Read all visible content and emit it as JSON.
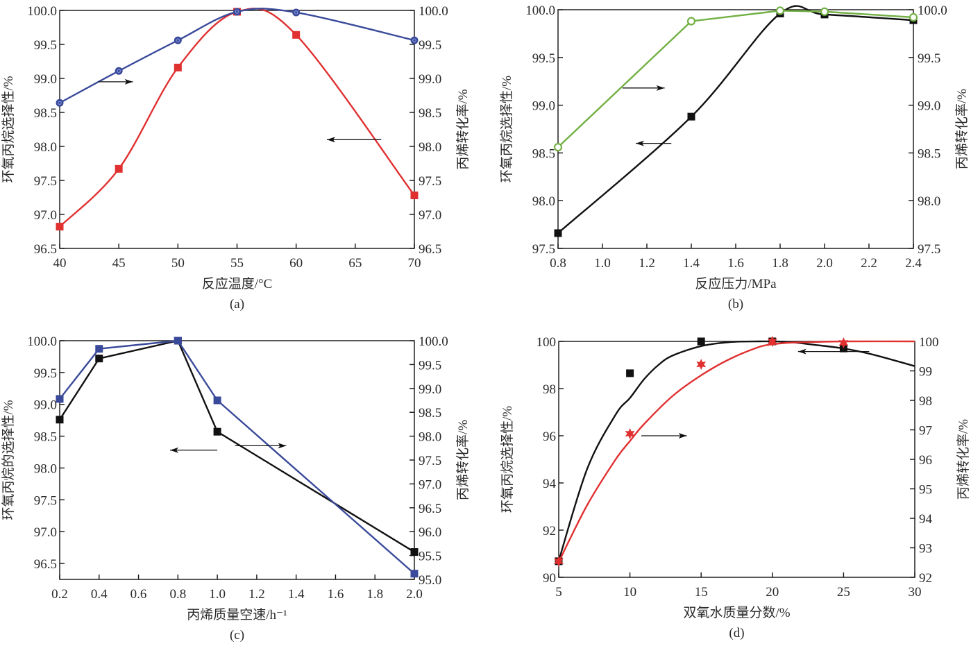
{
  "chart_data": [
    {
      "id": "a",
      "type": "line",
      "panel_label": "(a)",
      "xlabel": "反应温度/°C",
      "ylabel_left": "环氧丙烷选择性/%",
      "ylabel_right": "丙烯转化率/%",
      "xlim": [
        40,
        70
      ],
      "xticks": [
        40,
        45,
        50,
        55,
        60,
        65,
        70
      ],
      "xtick_labels": [
        "40",
        "45",
        "50",
        "55",
        "60",
        "65",
        "70"
      ],
      "ylim_left": [
        96.5,
        100.0
      ],
      "yticks_left": [
        "96.5",
        "97.0",
        "97.5",
        "98.0",
        "98.5",
        "99.0",
        "99.5",
        "100.0"
      ],
      "ylim_right": [
        96.5,
        100.0
      ],
      "yticks_right": [
        "96.5",
        "97.0",
        "97.5",
        "98.0",
        "98.5",
        "99.0",
        "99.5",
        "100.0"
      ],
      "grid": false,
      "series": [
        {
          "name": "环氧丙烷选择性",
          "axis": "left",
          "color": "#e03030",
          "marker": "square",
          "curve": "smooth",
          "x": [
            40,
            45,
            50,
            55,
            60,
            70
          ],
          "values": [
            96.82,
            97.67,
            99.16,
            99.98,
            99.64,
            97.28
          ]
        },
        {
          "name": "丙烯转化率",
          "axis": "right",
          "color": "#3a4a9a",
          "marker": "circle",
          "curve": "smooth",
          "x": [
            40,
            45,
            50,
            55,
            60,
            70
          ],
          "values": [
            98.64,
            99.11,
            99.56,
            99.98,
            99.97,
            99.56
          ]
        }
      ],
      "annotations": [
        {
          "type": "arrow",
          "direction": "right",
          "x_from": 43.3,
          "x_to": 46.2,
          "y": 98.95,
          "axis": "left",
          "meaning": "right axis"
        },
        {
          "type": "arrow",
          "direction": "left",
          "x_from": 67.2,
          "x_to": 62.6,
          "y": 98.1,
          "axis": "left",
          "meaning": "left axis"
        }
      ]
    },
    {
      "id": "b",
      "type": "line",
      "panel_label": "(b)",
      "xlabel": "反应压力/MPa",
      "ylabel_left": "环氧丙烷选择性/%",
      "ylabel_right": "丙烯转化率/%",
      "xlim": [
        0.8,
        2.4
      ],
      "xticks": [
        0.8,
        1.0,
        1.2,
        1.4,
        1.6,
        1.8,
        2.0,
        2.2,
        2.4
      ],
      "xtick_labels": [
        "0.8",
        "1.0",
        "1.2",
        "1.4",
        "1.6",
        "1.8",
        "2.0",
        "2.2",
        "2.4"
      ],
      "ylim_left": [
        97.5,
        100.0
      ],
      "yticks_left": [
        "97.5",
        "98.0",
        "98.5",
        "99.0",
        "99.5",
        "100.0"
      ],
      "ylim_right": [
        97.5,
        100.0
      ],
      "yticks_right": [
        "97.5",
        "98.0",
        "98.5",
        "99.0",
        "99.5",
        "100.0"
      ],
      "grid": false,
      "series": [
        {
          "name": "环氧丙烷选择性",
          "axis": "left",
          "color": "#111111",
          "marker": "square",
          "curve": "smooth",
          "x": [
            0.8,
            1.4,
            1.8,
            2.0,
            2.4
          ],
          "values": [
            97.66,
            98.88,
            99.96,
            99.95,
            99.89
          ]
        },
        {
          "name": "丙烯转化率",
          "axis": "right",
          "color": "#72b043",
          "marker": "open-circle",
          "curve": "linear",
          "x": [
            0.8,
            1.4,
            1.8,
            2.0,
            2.4
          ],
          "values": [
            98.56,
            99.88,
            99.99,
            99.98,
            99.92
          ]
        }
      ],
      "annotations": [
        {
          "type": "arrow",
          "direction": "right",
          "x_from": 1.09,
          "x_to": 1.28,
          "y": 99.18,
          "axis": "left",
          "meaning": "right axis"
        },
        {
          "type": "arrow",
          "direction": "left",
          "x_from": 1.31,
          "x_to": 1.15,
          "y": 98.6,
          "axis": "left",
          "meaning": "left axis"
        }
      ]
    },
    {
      "id": "c",
      "type": "line",
      "panel_label": "(c)",
      "xlabel": "丙烯质量空速/h⁻¹",
      "ylabel_left": "环氧丙烷的选择性/%",
      "ylabel_right": "丙烯转化率/%",
      "xlim": [
        0.2,
        2.0
      ],
      "xticks": [
        0.2,
        0.4,
        0.6,
        0.8,
        1.0,
        1.2,
        1.4,
        1.6,
        1.8,
        2.0
      ],
      "xtick_labels": [
        "0.2",
        "0.4",
        "0.6",
        "0.8",
        "1.0",
        "1.2",
        "1.4",
        "1.6",
        "1.8",
        "2.0"
      ],
      "ylim_left": [
        96.25,
        100.0
      ],
      "yticks_left": [
        "96.5",
        "97.0",
        "97.5",
        "98.0",
        "98.5",
        "99.0",
        "99.5",
        "100.0"
      ],
      "ylim_right": [
        95.0,
        100.0
      ],
      "yticks_right": [
        "95.0",
        "95.5",
        "96.0",
        "96.5",
        "97.0",
        "97.5",
        "98.0",
        "98.5",
        "99.0",
        "99.5",
        "100.0"
      ],
      "grid": false,
      "series": [
        {
          "name": "环氧丙烷的选择性",
          "axis": "left",
          "color": "#111111",
          "marker": "square",
          "curve": "linear",
          "x": [
            0.2,
            0.4,
            0.8,
            1.0,
            2.0
          ],
          "values": [
            98.76,
            99.72,
            100.0,
            98.57,
            96.68
          ]
        },
        {
          "name": "丙烯转化率",
          "axis": "right",
          "color": "#3a4a9a",
          "marker": "square",
          "curve": "linear",
          "x": [
            0.2,
            0.4,
            0.8,
            1.0,
            2.0
          ],
          "values": [
            98.78,
            99.83,
            100.0,
            98.75,
            95.12
          ]
        }
      ],
      "annotations": [
        {
          "type": "arrow",
          "direction": "left",
          "x_from": 1.0,
          "x_to": 0.76,
          "y": 98.28,
          "axis": "left",
          "meaning": "left axis"
        },
        {
          "type": "arrow",
          "direction": "right",
          "x_from": 1.09,
          "x_to": 1.35,
          "y": 98.35,
          "axis": "left",
          "meaning": "right axis"
        }
      ]
    },
    {
      "id": "d",
      "type": "line",
      "panel_label": "(d)",
      "xlabel": "双氧水质量分数/%",
      "ylabel_left": "环氧丙烷选择性/%",
      "ylabel_right": "丙烯转化率/%",
      "xlim": [
        5,
        30
      ],
      "xticks": [
        5,
        10,
        15,
        20,
        25,
        30
      ],
      "xtick_labels": [
        "5",
        "10",
        "15",
        "20",
        "25",
        "30"
      ],
      "ylim_left": [
        90,
        100
      ],
      "yticks_left": [
        "90",
        "92",
        "94",
        "96",
        "98",
        "100"
      ],
      "ylim_right": [
        92,
        100
      ],
      "yticks_right": [
        "92",
        "93",
        "94",
        "95",
        "96",
        "97",
        "98",
        "99",
        "100"
      ],
      "grid": false,
      "series": [
        {
          "name": "环氧丙烷选择性",
          "axis": "left",
          "color": "#111111",
          "marker": "square",
          "curve": "fit",
          "x": [
            5,
            10,
            15,
            20,
            25
          ],
          "values": [
            90.68,
            98.65,
            100.0,
            100.0,
            99.7
          ],
          "fit_x": [
            5,
            7,
            9,
            10,
            11,
            12,
            13,
            15,
            17,
            19,
            21,
            23,
            25,
            27,
            30
          ],
          "fit_y": [
            90.7,
            94.6,
            96.9,
            97.6,
            98.4,
            99.0,
            99.4,
            99.8,
            99.97,
            100.0,
            99.98,
            99.85,
            99.7,
            99.45,
            98.95
          ]
        },
        {
          "name": "丙烯转化率",
          "axis": "right",
          "color": "#e03030",
          "marker": "star",
          "curve": "fit",
          "x": [
            5,
            10,
            15,
            20,
            25
          ],
          "values": [
            92.54,
            96.87,
            99.22,
            100.0,
            99.95
          ],
          "fit_x": [
            5,
            7,
            9,
            10,
            11,
            13,
            15,
            17,
            19,
            20,
            21,
            23,
            25,
            30
          ],
          "fit_y": [
            92.52,
            94.45,
            96.0,
            96.62,
            97.2,
            98.15,
            98.85,
            99.4,
            99.8,
            99.9,
            99.95,
            99.98,
            100.0,
            100.0
          ]
        }
      ],
      "annotations": [
        {
          "type": "arrow",
          "direction": "right",
          "x_from": 10.8,
          "x_to": 14.0,
          "y": 96.0,
          "axis": "left",
          "meaning": "right axis"
        },
        {
          "type": "arrow",
          "direction": "left",
          "x_from": 26.8,
          "x_to": 21.8,
          "y": 99.57,
          "axis": "left",
          "meaning": "left axis"
        }
      ]
    }
  ]
}
